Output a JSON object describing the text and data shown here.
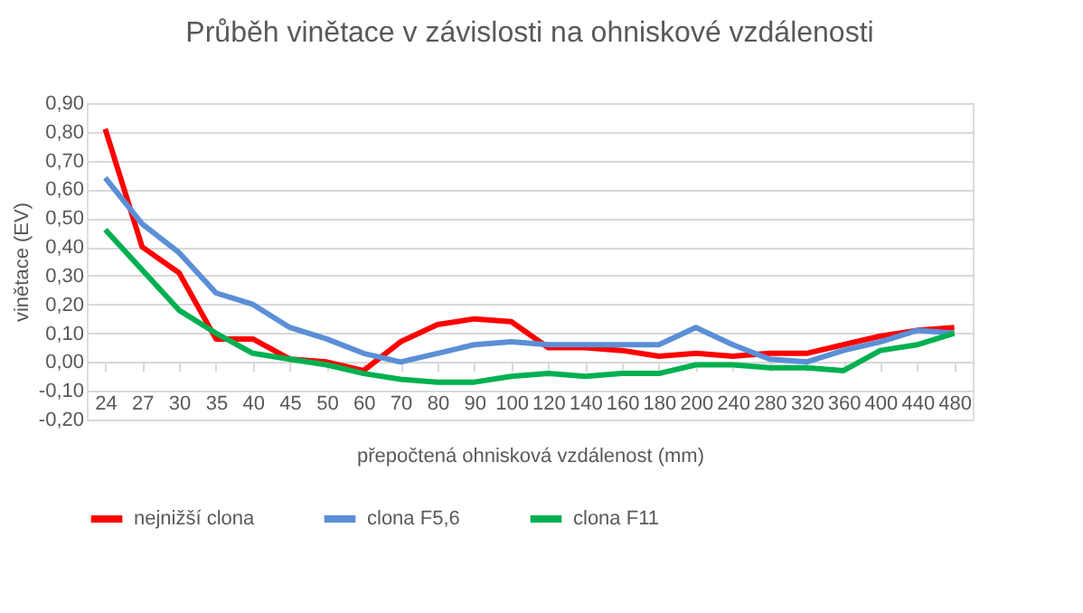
{
  "chart_data": {
    "type": "line",
    "title": "Průběh vinětace v závislosti na ohniskové vzdálenosti",
    "xlabel": "přepočtená ohnisková vzdálenost (mm)",
    "ylabel": "vinětace (EV)",
    "categories": [
      "24",
      "27",
      "30",
      "35",
      "40",
      "45",
      "50",
      "60",
      "70",
      "80",
      "90",
      "100",
      "120",
      "140",
      "160",
      "180",
      "200",
      "240",
      "280",
      "320",
      "360",
      "400",
      "440",
      "480"
    ],
    "series": [
      {
        "name": "nejnižší clona",
        "color": "#ff0000",
        "values": [
          0.81,
          0.4,
          0.31,
          0.08,
          0.08,
          0.01,
          0.0,
          -0.03,
          0.07,
          0.13,
          0.15,
          0.14,
          0.05,
          0.05,
          0.04,
          0.02,
          0.03,
          0.02,
          0.03,
          0.03,
          0.06,
          0.09,
          0.11,
          0.12
        ]
      },
      {
        "name": "clona F5,6",
        "color": "#5b8fd6",
        "values": [
          0.64,
          0.48,
          0.38,
          0.24,
          0.2,
          0.12,
          0.08,
          0.03,
          0.0,
          0.03,
          0.06,
          0.07,
          0.06,
          0.06,
          0.06,
          0.06,
          0.12,
          0.06,
          0.01,
          0.0,
          0.04,
          0.07,
          0.11,
          0.1
        ]
      },
      {
        "name": "clona F11",
        "color": "#00b050",
        "values": [
          0.46,
          0.32,
          0.18,
          0.1,
          0.03,
          0.01,
          -0.01,
          -0.04,
          -0.06,
          -0.07,
          -0.07,
          -0.05,
          -0.04,
          -0.05,
          -0.04,
          -0.04,
          -0.01,
          -0.01,
          -0.02,
          -0.02,
          -0.03,
          0.04,
          0.06,
          0.1
        ]
      }
    ],
    "ylim": [
      -0.2,
      0.9
    ],
    "yticks": [
      {
        "value": -0.2,
        "label": "-0,20"
      },
      {
        "value": -0.1,
        "label": "-0,10"
      },
      {
        "value": 0,
        "label": "0,00"
      },
      {
        "value": 0.1,
        "label": "0,10"
      },
      {
        "value": 0.2,
        "label": "0,20"
      },
      {
        "value": 0.3,
        "label": "0,30"
      },
      {
        "value": 0.4,
        "label": "0,40"
      },
      {
        "value": 0.5,
        "label": "0,50"
      },
      {
        "value": 0.6,
        "label": "0,60"
      },
      {
        "value": 0.7,
        "label": "0,70"
      },
      {
        "value": 0.8,
        "label": "0,80"
      },
      {
        "value": 0.9,
        "label": "0,90"
      }
    ],
    "grid": "y",
    "legend": "bottom",
    "marker": "none",
    "line_style": "solid"
  }
}
